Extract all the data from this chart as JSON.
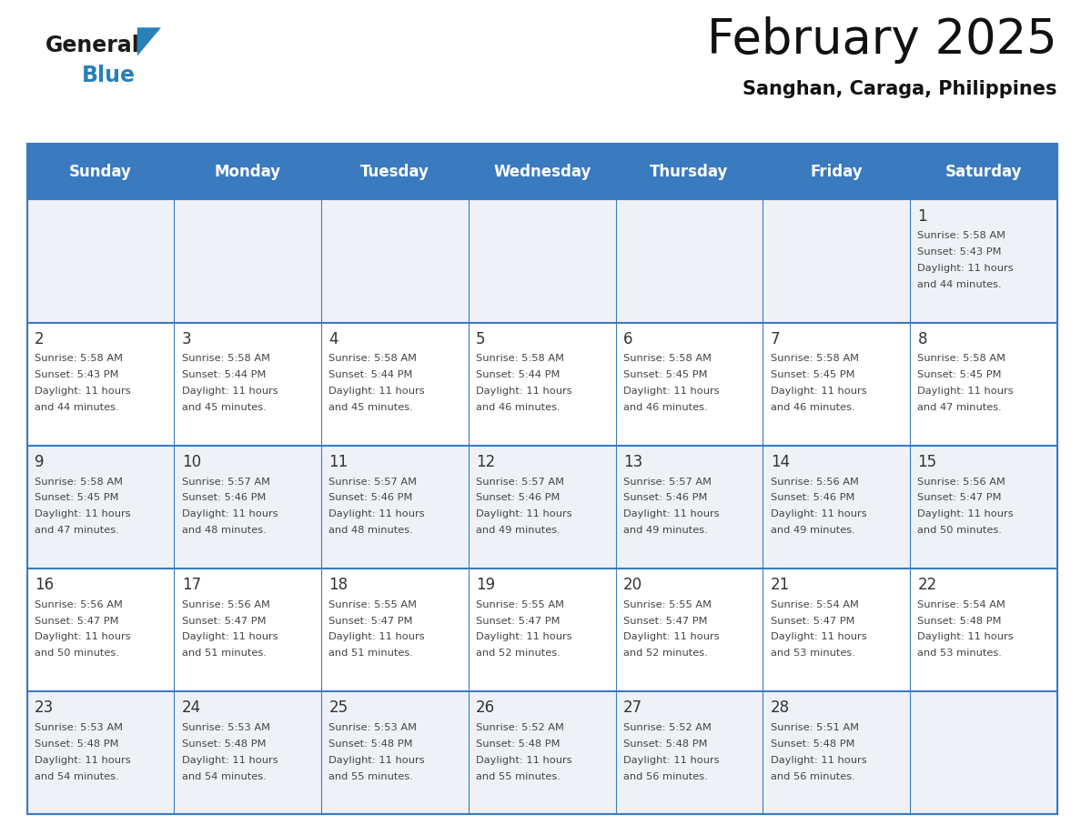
{
  "title": "February 2025",
  "subtitle": "Sanghan, Caraga, Philippines",
  "days_of_week": [
    "Sunday",
    "Monday",
    "Tuesday",
    "Wednesday",
    "Thursday",
    "Friday",
    "Saturday"
  ],
  "header_bg": "#3a7abf",
  "header_text": "#ffffff",
  "cell_bg_alt": "#eef2f7",
  "cell_bg_white": "#ffffff",
  "grid_line_color": "#3a7abf",
  "day_number_color": "#333333",
  "info_text_color": "#444444",
  "calendar_data": [
    {
      "day": 1,
      "col": 6,
      "row": 0,
      "sunrise": "5:58 AM",
      "sunset": "5:43 PM",
      "daylight": "11 hours and 44 minutes."
    },
    {
      "day": 2,
      "col": 0,
      "row": 1,
      "sunrise": "5:58 AM",
      "sunset": "5:43 PM",
      "daylight": "11 hours and 44 minutes."
    },
    {
      "day": 3,
      "col": 1,
      "row": 1,
      "sunrise": "5:58 AM",
      "sunset": "5:44 PM",
      "daylight": "11 hours and 45 minutes."
    },
    {
      "day": 4,
      "col": 2,
      "row": 1,
      "sunrise": "5:58 AM",
      "sunset": "5:44 PM",
      "daylight": "11 hours and 45 minutes."
    },
    {
      "day": 5,
      "col": 3,
      "row": 1,
      "sunrise": "5:58 AM",
      "sunset": "5:44 PM",
      "daylight": "11 hours and 46 minutes."
    },
    {
      "day": 6,
      "col": 4,
      "row": 1,
      "sunrise": "5:58 AM",
      "sunset": "5:45 PM",
      "daylight": "11 hours and 46 minutes."
    },
    {
      "day": 7,
      "col": 5,
      "row": 1,
      "sunrise": "5:58 AM",
      "sunset": "5:45 PM",
      "daylight": "11 hours and 46 minutes."
    },
    {
      "day": 8,
      "col": 6,
      "row": 1,
      "sunrise": "5:58 AM",
      "sunset": "5:45 PM",
      "daylight": "11 hours and 47 minutes."
    },
    {
      "day": 9,
      "col": 0,
      "row": 2,
      "sunrise": "5:58 AM",
      "sunset": "5:45 PM",
      "daylight": "11 hours and 47 minutes."
    },
    {
      "day": 10,
      "col": 1,
      "row": 2,
      "sunrise": "5:57 AM",
      "sunset": "5:46 PM",
      "daylight": "11 hours and 48 minutes."
    },
    {
      "day": 11,
      "col": 2,
      "row": 2,
      "sunrise": "5:57 AM",
      "sunset": "5:46 PM",
      "daylight": "11 hours and 48 minutes."
    },
    {
      "day": 12,
      "col": 3,
      "row": 2,
      "sunrise": "5:57 AM",
      "sunset": "5:46 PM",
      "daylight": "11 hours and 49 minutes."
    },
    {
      "day": 13,
      "col": 4,
      "row": 2,
      "sunrise": "5:57 AM",
      "sunset": "5:46 PM",
      "daylight": "11 hours and 49 minutes."
    },
    {
      "day": 14,
      "col": 5,
      "row": 2,
      "sunrise": "5:56 AM",
      "sunset": "5:46 PM",
      "daylight": "11 hours and 49 minutes."
    },
    {
      "day": 15,
      "col": 6,
      "row": 2,
      "sunrise": "5:56 AM",
      "sunset": "5:47 PM",
      "daylight": "11 hours and 50 minutes."
    },
    {
      "day": 16,
      "col": 0,
      "row": 3,
      "sunrise": "5:56 AM",
      "sunset": "5:47 PM",
      "daylight": "11 hours and 50 minutes."
    },
    {
      "day": 17,
      "col": 1,
      "row": 3,
      "sunrise": "5:56 AM",
      "sunset": "5:47 PM",
      "daylight": "11 hours and 51 minutes."
    },
    {
      "day": 18,
      "col": 2,
      "row": 3,
      "sunrise": "5:55 AM",
      "sunset": "5:47 PM",
      "daylight": "11 hours and 51 minutes."
    },
    {
      "day": 19,
      "col": 3,
      "row": 3,
      "sunrise": "5:55 AM",
      "sunset": "5:47 PM",
      "daylight": "11 hours and 52 minutes."
    },
    {
      "day": 20,
      "col": 4,
      "row": 3,
      "sunrise": "5:55 AM",
      "sunset": "5:47 PM",
      "daylight": "11 hours and 52 minutes."
    },
    {
      "day": 21,
      "col": 5,
      "row": 3,
      "sunrise": "5:54 AM",
      "sunset": "5:47 PM",
      "daylight": "11 hours and 53 minutes."
    },
    {
      "day": 22,
      "col": 6,
      "row": 3,
      "sunrise": "5:54 AM",
      "sunset": "5:48 PM",
      "daylight": "11 hours and 53 minutes."
    },
    {
      "day": 23,
      "col": 0,
      "row": 4,
      "sunrise": "5:53 AM",
      "sunset": "5:48 PM",
      "daylight": "11 hours and 54 minutes."
    },
    {
      "day": 24,
      "col": 1,
      "row": 4,
      "sunrise": "5:53 AM",
      "sunset": "5:48 PM",
      "daylight": "11 hours and 54 minutes."
    },
    {
      "day": 25,
      "col": 2,
      "row": 4,
      "sunrise": "5:53 AM",
      "sunset": "5:48 PM",
      "daylight": "11 hours and 55 minutes."
    },
    {
      "day": 26,
      "col": 3,
      "row": 4,
      "sunrise": "5:52 AM",
      "sunset": "5:48 PM",
      "daylight": "11 hours and 55 minutes."
    },
    {
      "day": 27,
      "col": 4,
      "row": 4,
      "sunrise": "5:52 AM",
      "sunset": "5:48 PM",
      "daylight": "11 hours and 56 minutes."
    },
    {
      "day": 28,
      "col": 5,
      "row": 4,
      "sunrise": "5:51 AM",
      "sunset": "5:48 PM",
      "daylight": "11 hours and 56 minutes."
    }
  ],
  "logo_color_general": "#1a1a1a",
  "logo_color_blue": "#2980b9",
  "logo_triangle_color": "#2980b9"
}
